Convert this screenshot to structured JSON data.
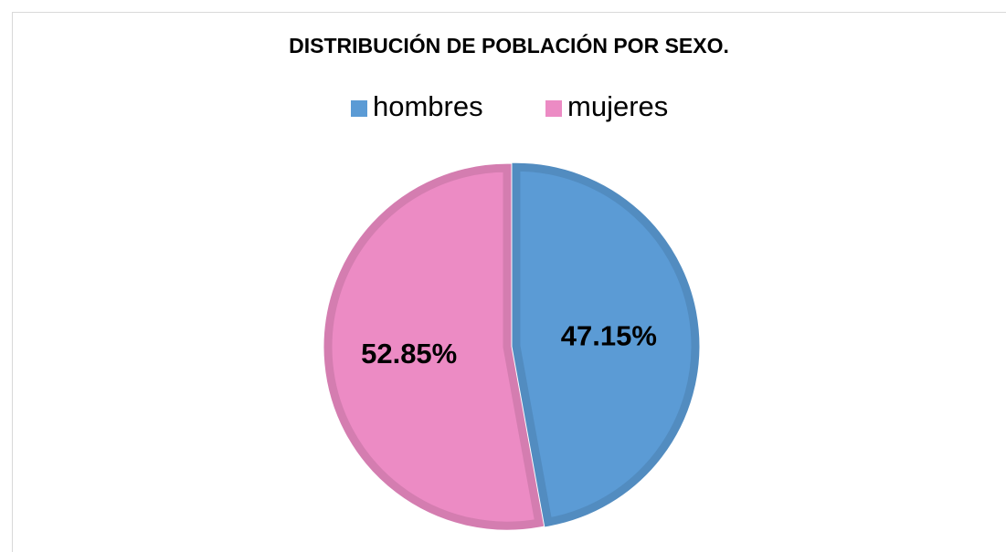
{
  "chart_data": {
    "type": "pie",
    "title": "DISTRIBUCIÓN DE POBLACIÓN POR SEXO.",
    "categories": [
      "hombres",
      "mujeres"
    ],
    "values": [
      47.15,
      52.85
    ],
    "value_labels": [
      "47.15%",
      "52.85%"
    ],
    "colors": [
      "#5b9bd5",
      "#ec8bc4"
    ],
    "legend": "top"
  }
}
